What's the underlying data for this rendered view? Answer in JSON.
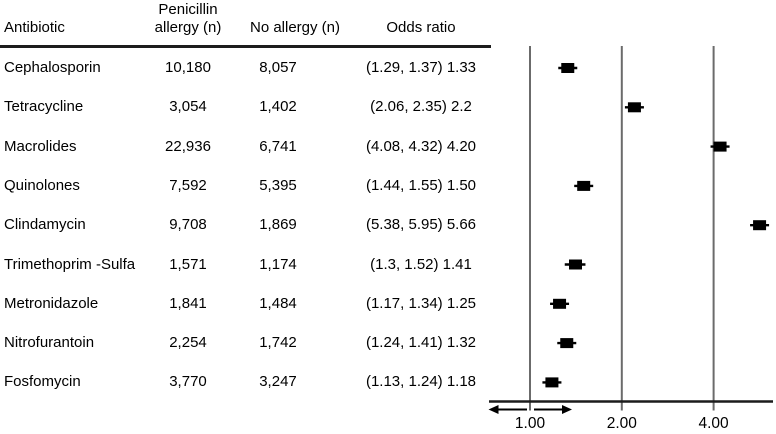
{
  "table": {
    "headers": {
      "antibiotic": "Antibiotic",
      "allergy_line1": "Penicillin",
      "allergy_line2": "allergy (n)",
      "no_allergy": "No allergy (n)",
      "odds_ratio": "Odds ratio"
    },
    "rows": [
      {
        "antibiotic": "Cephalosporin",
        "allergy_n": "10,180",
        "no_allergy_n": "8,057",
        "odds_ratio_text": "(1.29, 1.37) 1.33"
      },
      {
        "antibiotic": "Tetracycline",
        "allergy_n": "3,054",
        "no_allergy_n": "1,402",
        "odds_ratio_text": "(2.06, 2.35) 2.2"
      },
      {
        "antibiotic": "Macrolides",
        "allergy_n": "22,936",
        "no_allergy_n": "6,741",
        "odds_ratio_text": "(4.08, 4.32) 4.20"
      },
      {
        "antibiotic": "Quinolones",
        "allergy_n": "7,592",
        "no_allergy_n": "5,395",
        "odds_ratio_text": "(1.44, 1.55) 1.50"
      },
      {
        "antibiotic": "Clindamycin",
        "allergy_n": "9,708",
        "no_allergy_n": "1,869",
        "odds_ratio_text": "(5.38, 5.95) 5.66"
      },
      {
        "antibiotic": "Trimethoprim -Sulfa",
        "allergy_n": "1,571",
        "no_allergy_n": "1,174",
        "odds_ratio_text": "(1.3, 1.52) 1.41"
      },
      {
        "antibiotic": "Metronidazole",
        "allergy_n": "1,841",
        "no_allergy_n": "1,484",
        "odds_ratio_text": "(1.17, 1.34) 1.25"
      },
      {
        "antibiotic": "Nitrofurantoin",
        "allergy_n": "2,254",
        "no_allergy_n": "1,742",
        "odds_ratio_text": "(1.24, 1.41) 1.32"
      },
      {
        "antibiotic": "Fosfomycin",
        "allergy_n": "3,770",
        "no_allergy_n": "3,247",
        "odds_ratio_text": "(1.13, 1.24) 1.18"
      }
    ]
  },
  "chart_data": {
    "type": "scatter",
    "subtype": "forest-plot",
    "title": "",
    "xlabel": "Odds ratio",
    "x_scale": "log2",
    "x_axis": {
      "range_shown": [
        0.73,
        6.4
      ],
      "ticks": [
        {
          "value": 1,
          "label": "1.00"
        },
        {
          "value": 2,
          "label": "2.00"
        },
        {
          "value": 4,
          "label": "4.00"
        }
      ],
      "direction_arrows": [
        "left-of-1",
        "right-of-1"
      ],
      "grid": true
    },
    "points": [
      {
        "label": "Cephalosporin",
        "or": 1.33,
        "ci_low": 1.29,
        "ci_high": 1.37
      },
      {
        "label": "Tetracycline",
        "or": 2.2,
        "ci_low": 2.06,
        "ci_high": 2.35
      },
      {
        "label": "Macrolides",
        "or": 4.2,
        "ci_low": 4.08,
        "ci_high": 4.32
      },
      {
        "label": "Quinolones",
        "or": 1.5,
        "ci_low": 1.44,
        "ci_high": 1.55
      },
      {
        "label": "Clindamycin",
        "or": 5.66,
        "ci_low": 5.38,
        "ci_high": 5.95
      },
      {
        "label": "Trimethoprim -Sulfa",
        "or": 1.41,
        "ci_low": 1.3,
        "ci_high": 1.52
      },
      {
        "label": "Metronidazole",
        "or": 1.25,
        "ci_low": 1.17,
        "ci_high": 1.34
      },
      {
        "label": "Nitrofurantoin",
        "or": 1.32,
        "ci_low": 1.24,
        "ci_high": 1.41
      },
      {
        "label": "Fosfomycin",
        "or": 1.18,
        "ci_low": 1.13,
        "ci_high": 1.24
      }
    ]
  },
  "colors": {
    "background": "#ffffff",
    "text": "#000000",
    "gridline": "#6b6b6b",
    "axis_line": "#1c1c1c",
    "marker": "#000000"
  }
}
